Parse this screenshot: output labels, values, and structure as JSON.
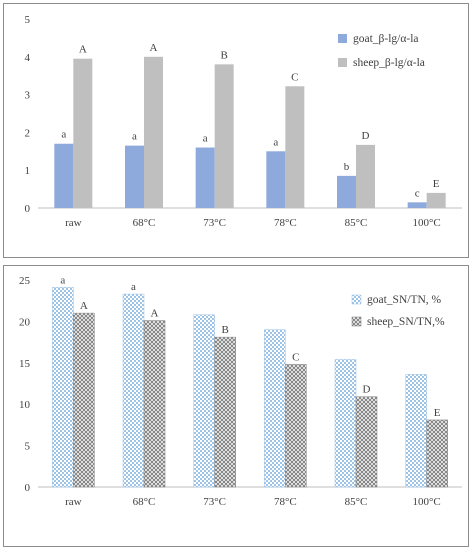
{
  "chart_data": [
    {
      "type": "bar",
      "title": "",
      "xlabel": "",
      "ylabel": "",
      "ylim": [
        0,
        5
      ],
      "yticks": [
        0,
        1,
        2,
        3,
        4,
        5
      ],
      "categories": [
        "raw",
        "68°C",
        "73°C",
        "78°C",
        "85°C",
        "100°C"
      ],
      "series": [
        {
          "name": "goat_β-lg/α-la",
          "values": [
            1.7,
            1.65,
            1.6,
            1.5,
            0.85,
            0.15
          ],
          "labels": [
            "a",
            "a",
            "a",
            "a",
            "b",
            "c"
          ],
          "color": "#8EA9DB",
          "pattern": "solid"
        },
        {
          "name": "sheep_β-lg/α-la",
          "values": [
            3.95,
            4.0,
            3.8,
            3.22,
            1.67,
            0.4
          ],
          "labels": [
            "A",
            "A",
            "B",
            "C",
            "D",
            "E"
          ],
          "color": "#BFBFBF",
          "pattern": "solid"
        }
      ],
      "grid": false,
      "legend_position": "top-right"
    },
    {
      "type": "bar",
      "title": "",
      "xlabel": "",
      "ylabel": "",
      "ylim": [
        0,
        25
      ],
      "yticks": [
        0,
        5,
        10,
        15,
        20,
        25
      ],
      "categories": [
        "raw",
        "68°C",
        "73°C",
        "78°C",
        "85°C",
        "100°C"
      ],
      "series": [
        {
          "name": "goat_SN/TN, %",
          "values": [
            24.1,
            23.3,
            20.8,
            19.0,
            15.4,
            13.6
          ],
          "labels": [
            "a",
            "a",
            "",
            "",
            "",
            ""
          ],
          "color": "#9DC3E6",
          "pattern": "checker"
        },
        {
          "name": "sheep_SN/TN,%",
          "values": [
            21.0,
            20.1,
            18.1,
            14.8,
            10.9,
            8.1
          ],
          "labels": [
            "A",
            "A",
            "B",
            "C",
            "D",
            "E"
          ],
          "color": "#7F7F7F",
          "pattern": "crosshatch"
        }
      ],
      "grid": false,
      "legend_position": "top-right"
    }
  ]
}
